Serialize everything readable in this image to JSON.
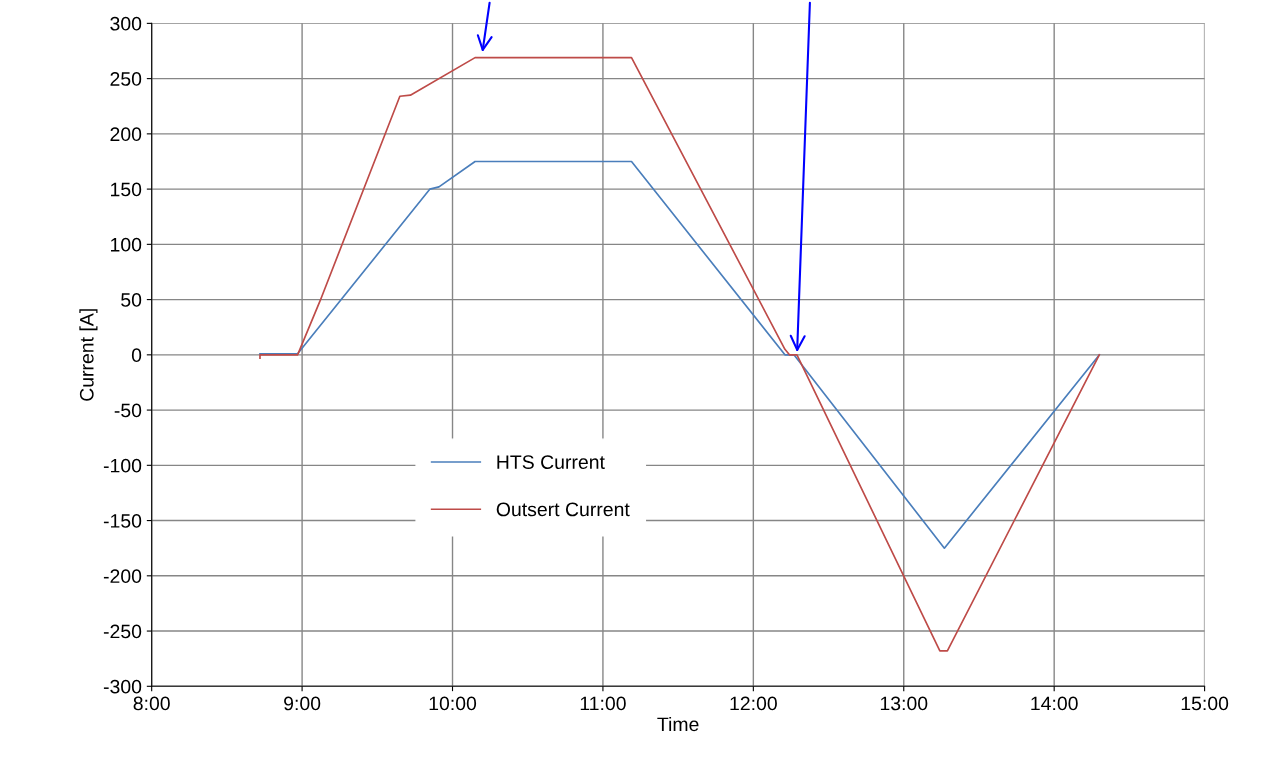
{
  "chart_data": {
    "type": "line",
    "xlabel": "Time",
    "ylabel": "Current [A]",
    "xlim": [
      8,
      15
    ],
    "xticks": [
      {
        "value": 8,
        "label": "8:00"
      },
      {
        "value": 9,
        "label": "9:00"
      },
      {
        "value": 10,
        "label": "10:00"
      },
      {
        "value": 11,
        "label": "11:00"
      },
      {
        "value": 12,
        "label": "12:00"
      },
      {
        "value": 13,
        "label": "13:00"
      },
      {
        "value": 14,
        "label": "14:00"
      },
      {
        "value": 15,
        "label": "15:00"
      }
    ],
    "ylim": [
      -300,
      300
    ],
    "yticks": [
      -300,
      -250,
      -200,
      -150,
      -100,
      -50,
      0,
      50,
      100,
      150,
      200,
      250,
      300
    ],
    "grid": true,
    "legend": "center",
    "marker": "none",
    "line_style": "solid",
    "series": [
      {
        "name": "HTS Current",
        "color": "#4a7ebb",
        "x": [
          8.72,
          8.97,
          9.85,
          9.91,
          10.15,
          11.19,
          12.21,
          12.27,
          13.27,
          14.3
        ],
        "values": [
          1,
          1,
          150,
          152,
          175,
          175,
          0,
          0,
          -175,
          0
        ]
      },
      {
        "name": "Outsert Current",
        "color": "#be4b48",
        "x": [
          8.72,
          8.72,
          8.97,
          9.12,
          9.65,
          9.72,
          10.15,
          11.19,
          12.21,
          12.24,
          12.29,
          13.24,
          13.29,
          14.3
        ],
        "values": [
          -3,
          0,
          0,
          49,
          234,
          235,
          269,
          269,
          5,
          0,
          0,
          -268,
          -268,
          0
        ]
      }
    ]
  }
}
